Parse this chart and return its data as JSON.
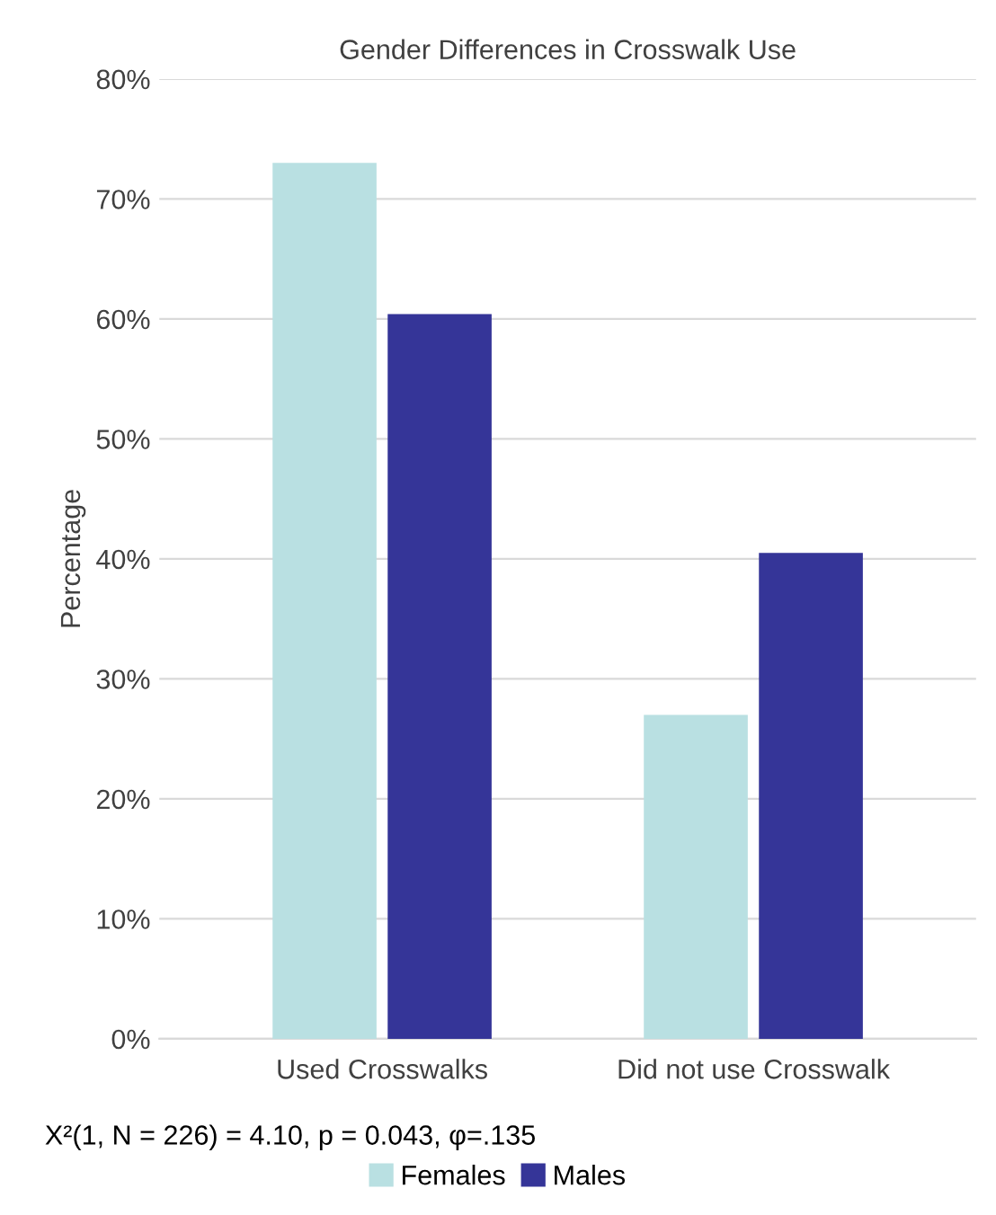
{
  "chart_data": {
    "type": "bar",
    "title": "Gender Differences in Crosswalk Use",
    "ylabel": "Percentage",
    "categories": [
      "Used Crosswalks",
      "Did not use Crosswalk"
    ],
    "series": [
      {
        "name": "Females",
        "color": "#b9e0e2",
        "values": [
          73.0,
          27.0
        ]
      },
      {
        "name": "Males",
        "color": "#353598",
        "values": [
          60.4,
          40.5
        ]
      }
    ],
    "ylim": [
      0,
      80
    ],
    "yticks": [
      {
        "value": 0,
        "label": "0%"
      },
      {
        "value": 10,
        "label": "10%"
      },
      {
        "value": 20,
        "label": "20%"
      },
      {
        "value": 30,
        "label": "30%"
      },
      {
        "value": 40,
        "label": "40%"
      },
      {
        "value": 50,
        "label": "50%"
      },
      {
        "value": 60,
        "label": "60%"
      },
      {
        "value": 70,
        "label": "70%"
      },
      {
        "value": 80,
        "label": "80%"
      }
    ],
    "grid": "y",
    "legend": "bottom",
    "annotations": [
      "X²(1, N = 226) = 4.10, p = 0.043, φ=.135"
    ]
  }
}
